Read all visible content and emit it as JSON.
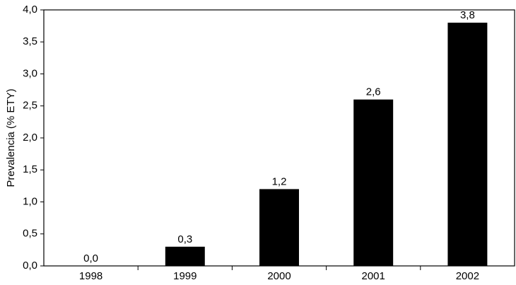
{
  "chart_data": {
    "type": "bar",
    "y_label": "Prevalencia (% ETY)",
    "categories": [
      "1998",
      "1999",
      "2000",
      "2001",
      "2002"
    ],
    "values": [
      0,
      0.3,
      1.2,
      2.6,
      3.8
    ],
    "value_labels": [
      "0,0",
      "0,3",
      "1,2",
      "2,6",
      "3,8"
    ],
    "color": "#000000",
    "ylim": [
      0,
      4
    ],
    "yticks": [
      {
        "value": 0,
        "label": "0,0"
      },
      {
        "value": 0.5,
        "label": "0,5"
      },
      {
        "value": 1,
        "label": "1,0"
      },
      {
        "value": 1.5,
        "label": "1,5"
      },
      {
        "value": 2,
        "label": "2,0"
      },
      {
        "value": 2.5,
        "label": "2,5"
      },
      {
        "value": 3,
        "label": "3,0"
      },
      {
        "value": 3.5,
        "label": "3,5"
      },
      {
        "value": 4,
        "label": "4,0"
      }
    ],
    "grid": false
  }
}
